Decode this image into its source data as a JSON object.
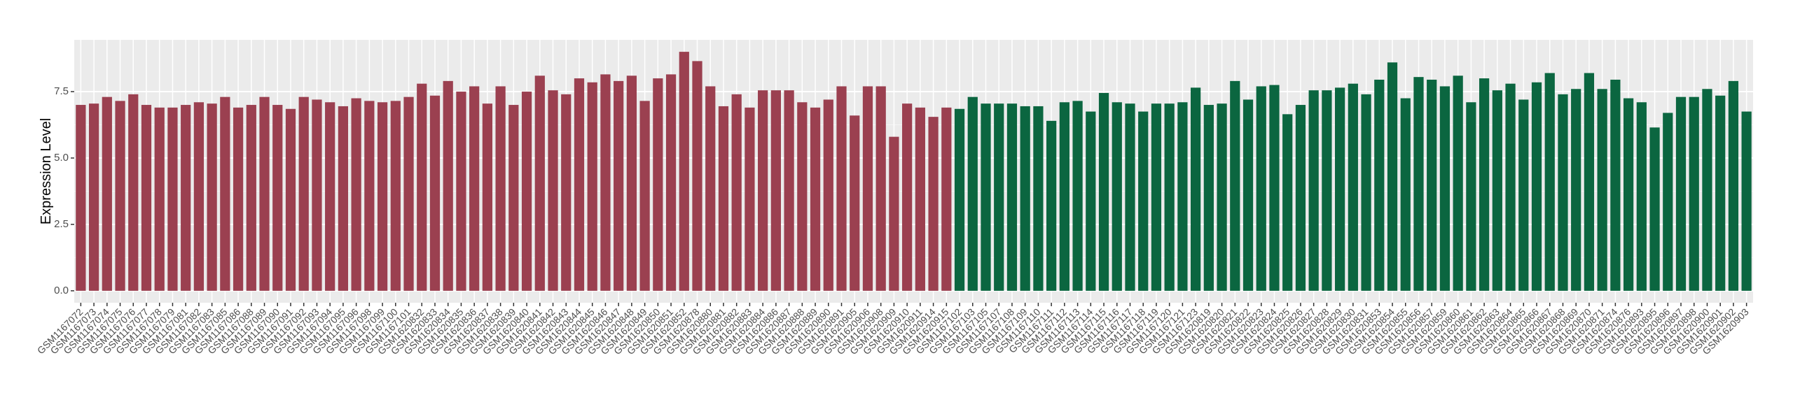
{
  "chart_data": {
    "type": "bar",
    "y_label": "Expression Level",
    "categories": [
      "GSM1167072",
      "GSM1167073",
      "GSM1167074",
      "GSM1167075",
      "GSM1167076",
      "GSM1167077",
      "GSM1167078",
      "GSM1167079",
      "GSM1167081",
      "GSM1167082",
      "GSM1167083",
      "GSM1167085",
      "GSM1167086",
      "GSM1167088",
      "GSM1167089",
      "GSM1167090",
      "GSM1167091",
      "GSM1167092",
      "GSM1167093",
      "GSM1167094",
      "GSM1167095",
      "GSM1167096",
      "GSM1167098",
      "GSM1167099",
      "GSM1167100",
      "GSM1167101",
      "GSM1620832",
      "GSM1620833",
      "GSM1620834",
      "GSM1620835",
      "GSM1620836",
      "GSM1620837",
      "GSM1620838",
      "GSM1620839",
      "GSM1620840",
      "GSM1620841",
      "GSM1620842",
      "GSM1620843",
      "GSM1620844",
      "GSM1620845",
      "GSM1620846",
      "GSM1620847",
      "GSM1620848",
      "GSM1620849",
      "GSM1620850",
      "GSM1620851",
      "GSM1620852",
      "GSM1620878",
      "GSM1620880",
      "GSM1620881",
      "GSM1620882",
      "GSM1620883",
      "GSM1620884",
      "GSM1620886",
      "GSM1620887",
      "GSM1620888",
      "GSM1620889",
      "GSM1620890",
      "GSM1620891",
      "GSM1620905",
      "GSM1620906",
      "GSM1620908",
      "GSM1620909",
      "GSM1620910",
      "GSM1620911",
      "GSM1620914",
      "GSM1620915",
      "GSM1167102",
      "GSM1167103",
      "GSM1167105",
      "GSM1167107",
      "GSM1167108",
      "GSM1167109",
      "GSM1167110",
      "GSM1167111",
      "GSM1167112",
      "GSM1167113",
      "GSM1167114",
      "GSM1167115",
      "GSM1167116",
      "GSM1167117",
      "GSM1167118",
      "GSM1167119",
      "GSM1167120",
      "GSM1167121",
      "GSM1167123",
      "GSM1620819",
      "GSM1620820",
      "GSM1620821",
      "GSM1620822",
      "GSM1620823",
      "GSM1620824",
      "GSM1620825",
      "GSM1620826",
      "GSM1620827",
      "GSM1620828",
      "GSM1620829",
      "GSM1620830",
      "GSM1620831",
      "GSM1620853",
      "GSM1620854",
      "GSM1620855",
      "GSM1620856",
      "GSM1620857",
      "GSM1620859",
      "GSM1620860",
      "GSM1620861",
      "GSM1620862",
      "GSM1620863",
      "GSM1620864",
      "GSM1620865",
      "GSM1620866",
      "GSM1620867",
      "GSM1620868",
      "GSM1620869",
      "GSM1620870",
      "GSM1620871",
      "GSM1620874",
      "GSM1620876",
      "GSM1620893",
      "GSM1620895",
      "GSM1620896",
      "GSM1620897",
      "GSM1620898",
      "GSM1620900",
      "GSM1620901",
      "GSM1620902",
      "GSM1620903"
    ],
    "series": [
      {
        "color": "#9b4050",
        "values": [
          7.0,
          7.05,
          7.3,
          7.15,
          7.4,
          7.0,
          6.9,
          6.9,
          7.0,
          7.1,
          7.05,
          7.3,
          6.9,
          7.0,
          7.3,
          7.0,
          6.85,
          7.3,
          7.2,
          7.1,
          6.95,
          7.25,
          7.15,
          7.1,
          7.15,
          7.3,
          7.8,
          7.35,
          7.9,
          7.5,
          7.7,
          7.05,
          7.7,
          7.0,
          7.5,
          8.1,
          7.55,
          7.4,
          8.0,
          7.85,
          8.15,
          7.9,
          8.1,
          7.15,
          8.0,
          8.15,
          9.0,
          8.65,
          7.7,
          6.95,
          7.4,
          6.9,
          7.55,
          7.55,
          7.55,
          7.1,
          6.9,
          7.2,
          7.7,
          6.6,
          7.7,
          7.7,
          5.8,
          7.05,
          6.9,
          6.55,
          6.9,
          null,
          null,
          null,
          null,
          null,
          null,
          null,
          null,
          null,
          null,
          null,
          null,
          null,
          null,
          null,
          null,
          null,
          null,
          null,
          null,
          null,
          null,
          null,
          null,
          null,
          null,
          null,
          null,
          null,
          null,
          null,
          null,
          null,
          null,
          null,
          null,
          null,
          null,
          null,
          null,
          null,
          null,
          null,
          null,
          null,
          null,
          null,
          null,
          null,
          null,
          null,
          null,
          null,
          null,
          null,
          null,
          null,
          null,
          null,
          null,
          null
        ]
      },
      {
        "color": "#0b6640",
        "values": [
          null,
          null,
          null,
          null,
          null,
          null,
          null,
          null,
          null,
          null,
          null,
          null,
          null,
          null,
          null,
          null,
          null,
          null,
          null,
          null,
          null,
          null,
          null,
          null,
          null,
          null,
          null,
          null,
          null,
          null,
          null,
          null,
          null,
          null,
          null,
          null,
          null,
          null,
          null,
          null,
          null,
          null,
          null,
          null,
          null,
          null,
          null,
          null,
          null,
          null,
          null,
          null,
          null,
          null,
          null,
          null,
          null,
          null,
          null,
          null,
          null,
          null,
          null,
          null,
          null,
          null,
          null,
          6.85,
          7.3,
          7.05,
          7.05,
          7.05,
          6.95,
          6.95,
          6.4,
          7.1,
          7.15,
          6.75,
          7.45,
          7.1,
          7.05,
          6.75,
          7.05,
          7.05,
          7.1,
          7.65,
          7.0,
          7.05,
          7.9,
          7.2,
          7.7,
          7.75,
          6.65,
          7.0,
          7.55,
          7.55,
          7.65,
          7.8,
          7.4,
          7.95,
          8.6,
          7.25,
          8.05,
          7.95,
          7.7,
          8.1,
          7.1,
          8.0,
          7.55,
          7.8,
          7.2,
          7.85,
          8.2,
          7.4,
          7.6,
          8.2,
          7.6,
          7.95,
          7.25,
          7.1,
          6.15,
          6.7,
          7.3,
          7.3,
          7.6,
          7.35,
          7.9,
          6.75
        ]
      }
    ],
    "ylim": [
      -0.45,
      9.45
    ],
    "yticks": [
      {
        "value": 0,
        "label": "0.0"
      },
      2.5,
      {
        "value": 5,
        "label": "5.0"
      },
      7.5
    ],
    "grid": true
  }
}
